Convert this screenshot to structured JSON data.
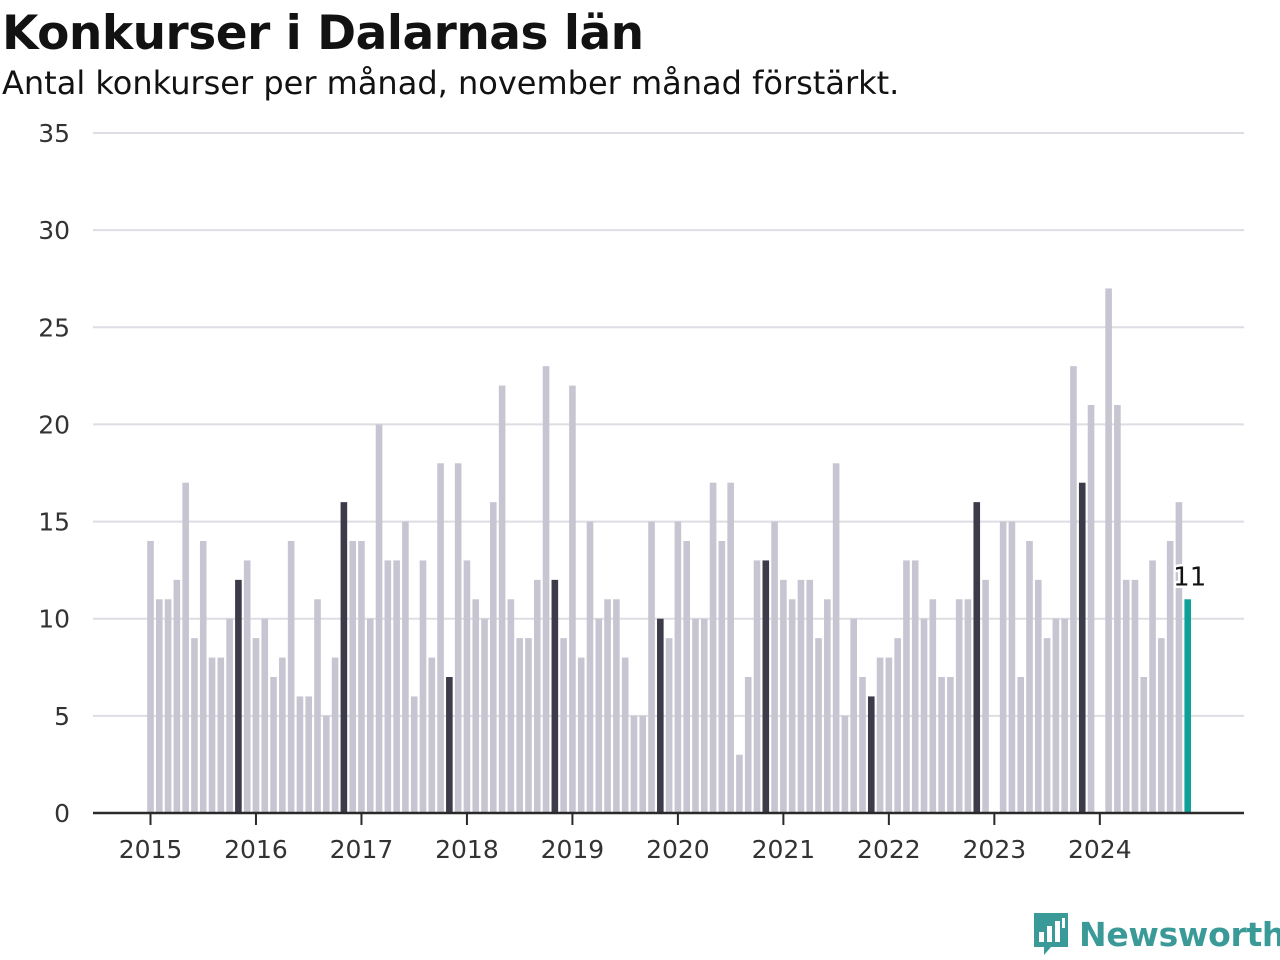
{
  "title": "Konkurser i Dalarnas län",
  "subtitle": "Antal konkurser per månad, november månad förstärkt.",
  "brand": "Newsworthy",
  "colors": {
    "bar": "#c6c5d1",
    "highlight": "#3c3b4a",
    "latest": "#10a098",
    "grid": "#dddde3",
    "axis": "#2a2a2a",
    "brand": "#3a9a98"
  },
  "chart_data": {
    "type": "bar",
    "ylim": [
      0,
      35
    ],
    "yticks": [
      0,
      5,
      10,
      15,
      20,
      25,
      30,
      35
    ],
    "grid": true,
    "first_year": 2015,
    "first_month": 1,
    "highlight_month": 11,
    "xtick_labels": [
      "2015",
      "2016",
      "2017",
      "2018",
      "2019",
      "2020",
      "2021",
      "2022",
      "2023",
      "2024"
    ],
    "last_value_label": "11",
    "values": [
      14,
      11,
      11,
      12,
      17,
      9,
      14,
      8,
      8,
      10,
      12,
      13,
      9,
      10,
      7,
      8,
      14,
      6,
      6,
      11,
      5,
      8,
      16,
      14,
      14,
      10,
      20,
      13,
      13,
      15,
      6,
      13,
      8,
      18,
      7,
      18,
      13,
      11,
      10,
      16,
      22,
      11,
      9,
      9,
      12,
      23,
      12,
      9,
      22,
      8,
      15,
      10,
      11,
      11,
      8,
      5,
      5,
      15,
      10,
      9,
      15,
      14,
      10,
      10,
      17,
      14,
      17,
      3,
      7,
      13,
      13,
      15,
      12,
      11,
      12,
      12,
      9,
      11,
      18,
      5,
      10,
      7,
      6,
      8,
      8,
      9,
      13,
      13,
      10,
      11,
      7,
      7,
      11,
      11,
      16,
      12,
      0,
      15,
      15,
      7,
      14,
      12,
      9,
      10,
      10,
      23,
      17,
      21,
      0,
      27,
      21,
      12,
      12,
      7,
      13,
      9,
      14,
      16,
      11
    ]
  }
}
